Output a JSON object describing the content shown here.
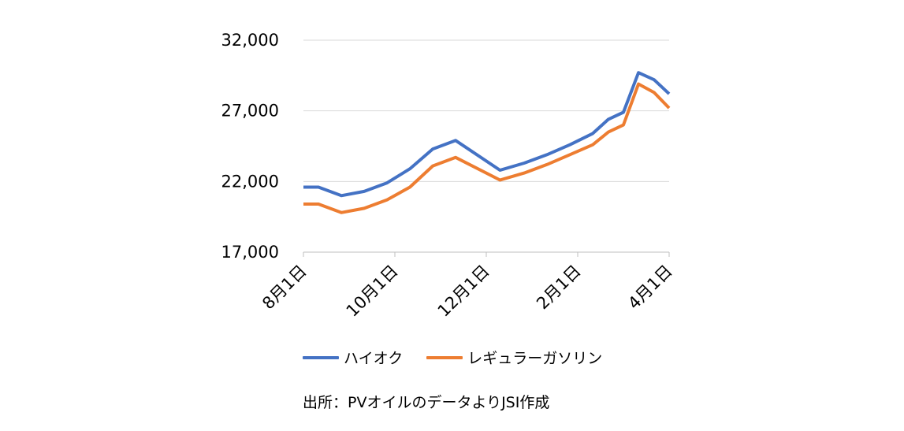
{
  "chart_data": {
    "type": "line",
    "x_labels": [
      "8月1日",
      "10月1日",
      "12月1日",
      "2月1日",
      "4月1日"
    ],
    "x_positions": [
      0,
      2,
      4,
      6,
      8
    ],
    "x": [
      0,
      0.33,
      0.83,
      1.33,
      1.83,
      2.33,
      2.83,
      3.33,
      4.3,
      4.83,
      5.33,
      5.83,
      6.33,
      6.67,
      7.0,
      7.33,
      7.67,
      8.0
    ],
    "series": [
      {
        "name": "ハイオク",
        "color": "#4472C4",
        "values": [
          21600,
          21600,
          21000,
          21300,
          21900,
          22900,
          24300,
          24900,
          22800,
          23300,
          23900,
          24600,
          25400,
          26400,
          26900,
          29700,
          29200,
          28200
        ]
      },
      {
        "name": "レギュラーガソリン",
        "color": "#ED7D31",
        "values": [
          20400,
          20400,
          19800,
          20100,
          20700,
          21600,
          23100,
          23700,
          22100,
          22600,
          23200,
          23900,
          24600,
          25500,
          26000,
          28900,
          28300,
          27200
        ]
      }
    ],
    "ylim": [
      17000,
      32000
    ],
    "yticks": [
      "17,000",
      "22,000",
      "27,000",
      "32,000"
    ],
    "ytick_values": [
      17000,
      22000,
      27000,
      32000
    ],
    "grid": true,
    "legend_position": "bottom",
    "xlabel": "",
    "ylabel": "",
    "title": ""
  },
  "legend": {
    "items": [
      {
        "label": "ハイオク",
        "color": "#4472C4"
      },
      {
        "label": "レギュラーガソリン",
        "color": "#ED7D31"
      }
    ]
  },
  "source_note": "出所：PVオイルのデータよりJSI作成"
}
